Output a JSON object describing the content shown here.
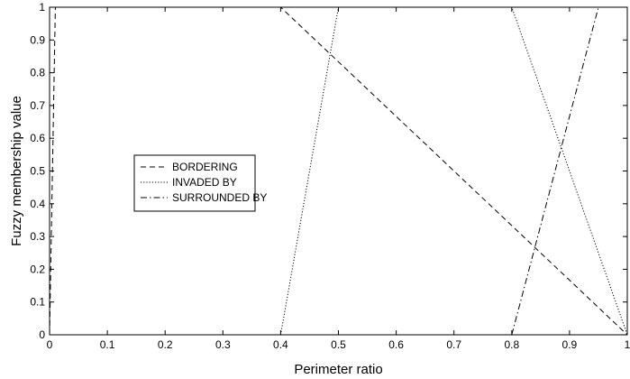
{
  "chart_data": {
    "type": "line",
    "title": "",
    "xlabel": "Perimeter ratio",
    "ylabel": "Fuzzy membership value",
    "xlim": [
      0,
      1
    ],
    "ylim": [
      0,
      1
    ],
    "xticks": [
      0,
      0.1,
      0.2,
      0.3,
      0.4,
      0.5,
      0.6,
      0.7,
      0.8,
      0.9,
      1
    ],
    "xtick_labels": [
      "0",
      "0.1",
      "0.2",
      "0.3",
      "0.4",
      "0.5",
      "0.6",
      "0.7",
      "0.8",
      "0.9",
      "1"
    ],
    "yticks": [
      0,
      0.1,
      0.2,
      0.3,
      0.4,
      0.5,
      0.6,
      0.7,
      0.8,
      0.9,
      1
    ],
    "ytick_labels": [
      "0",
      "0.1",
      "0.2",
      "0.3",
      "0.4",
      "0.5",
      "0.6",
      "0.7",
      "0.8",
      "0.9",
      "1"
    ],
    "grid": false,
    "legend_position": "center-left",
    "series": [
      {
        "name": "BORDERING",
        "style": "dashed",
        "color": "#000000",
        "x": [
          0,
          0.01,
          0.4,
          1.0
        ],
        "y": [
          0,
          1,
          1,
          0
        ]
      },
      {
        "name": "INVADED BY",
        "style": "dotted",
        "color": "#000000",
        "x": [
          0.4,
          0.5,
          0.8,
          1.0
        ],
        "y": [
          0,
          1,
          1,
          0
        ]
      },
      {
        "name": "SURROUNDED BY",
        "style": "dashdot",
        "color": "#000000",
        "x": [
          0.8,
          0.95,
          1.0
        ],
        "y": [
          0,
          1,
          1
        ]
      }
    ]
  }
}
